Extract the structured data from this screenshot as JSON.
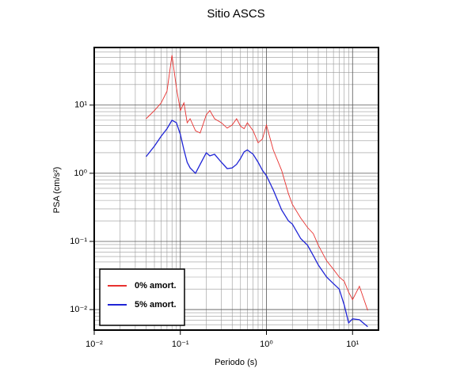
{
  "chart_data": {
    "type": "line",
    "title": "Sitio ASCS",
    "x_label": "Periodo (s)",
    "y_label": "PSA (cm/s²)",
    "log_x": true,
    "log_y": true,
    "grid": true,
    "minor_grid": true,
    "legend_position": "lower left",
    "xlim": [
      0.01,
      20
    ],
    "ylim": [
      0.005,
      70
    ],
    "xticks": [
      {
        "value": 0.01,
        "label": "10⁻²"
      },
      {
        "value": 0.1,
        "label": "10⁻¹"
      },
      {
        "value": 1,
        "label": "10⁰"
      },
      {
        "value": 10,
        "label": "10¹"
      }
    ],
    "yticks": [
      {
        "value": 0.01,
        "label": "10⁻²"
      },
      {
        "value": 0.1,
        "label": "10⁻¹"
      },
      {
        "value": 1,
        "label": "10⁰"
      },
      {
        "value": 10,
        "label": "10¹"
      }
    ],
    "x": [
      0.04,
      0.05,
      0.06,
      0.07,
      0.08,
      0.09,
      0.1,
      0.11,
      0.12,
      0.13,
      0.15,
      0.17,
      0.2,
      0.22,
      0.25,
      0.3,
      0.35,
      0.4,
      0.45,
      0.5,
      0.55,
      0.6,
      0.7,
      0.8,
      0.9,
      1.0,
      1.2,
      1.5,
      1.8,
      2,
      2.5,
      3,
      3.5,
      4,
      5,
      6,
      7,
      8,
      9,
      10,
      12,
      15
    ],
    "series": [
      {
        "name": "0% amort.",
        "color": "#e8312f",
        "values": [
          6.3,
          8.3,
          10.8,
          16,
          54,
          18,
          8.3,
          10.8,
          5.5,
          6.3,
          4.2,
          3.9,
          7.2,
          8.3,
          6.3,
          5.5,
          4.6,
          5.1,
          6.3,
          4.9,
          4.5,
          5.5,
          4.2,
          2.8,
          3.2,
          5.1,
          2.2,
          1.1,
          0.5,
          0.35,
          0.22,
          0.16,
          0.13,
          0.088,
          0.052,
          0.039,
          0.03,
          0.026,
          0.018,
          0.014,
          0.022,
          0.0097
        ]
      },
      {
        "name": "5% amort.",
        "color": "#1f24d6",
        "values": [
          1.75,
          2.5,
          3.5,
          4.5,
          6,
          5.5,
          3.7,
          2.2,
          1.45,
          1.2,
          1.0,
          1.35,
          2.0,
          1.8,
          1.9,
          1.45,
          1.17,
          1.2,
          1.35,
          1.65,
          2.06,
          2.2,
          1.9,
          1.45,
          1.1,
          0.92,
          0.57,
          0.29,
          0.2,
          0.18,
          0.11,
          0.088,
          0.062,
          0.045,
          0.03,
          0.024,
          0.02,
          0.0117,
          0.0064,
          0.0073,
          0.0071,
          0.0056
        ]
      }
    ]
  }
}
